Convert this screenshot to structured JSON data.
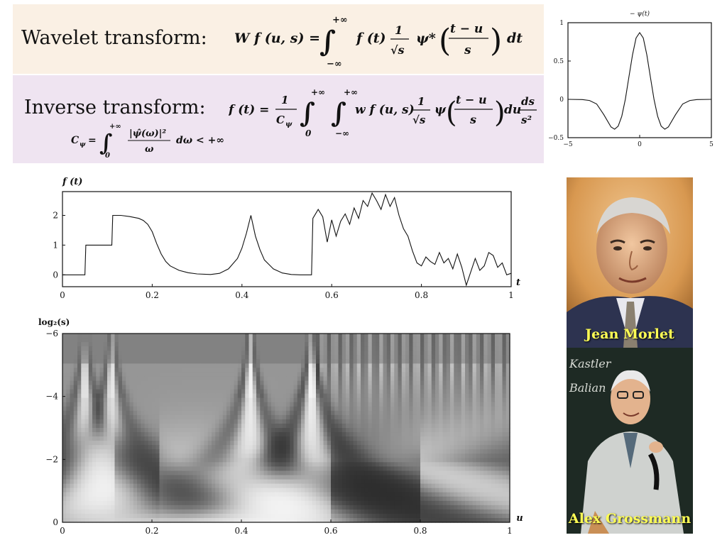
{
  "header": {
    "forward_label": "Wavelet transform:",
    "inverse_label": "Inverse transform:",
    "forward_eq": {
      "lhs": "W f (u, s) =",
      "upper": "+∞",
      "lower": "−∞",
      "f": "f (t)",
      "one": "1",
      "root": "√s",
      "psi": "ψ*",
      "num": "t − u",
      "den": "s",
      "dt": "dt"
    },
    "inverse_eq": {
      "lhs": "f (t) =",
      "one": "1",
      "cpsi": "C",
      "cpsi_sub": "ψ",
      "upper": "+∞",
      "lower0": "0",
      "upper2": "+∞",
      "lower2": "−∞",
      "w": "w f (u, s)",
      "one2": "1",
      "root": "√s",
      "psi": "ψ",
      "num": "t − u",
      "den": "s",
      "du": "du",
      "ds": "ds",
      "s2": "s²"
    },
    "admissibility": {
      "lhs": "C",
      "lhs_sub": "ψ",
      "eq": "=",
      "upper": "+∞",
      "lower": "0",
      "num": "|ψ̂(ω)|²",
      "den": "ω",
      "tail": "dω < +∞"
    }
  },
  "people": {
    "morlet": "Jean Morlet",
    "grossmann": "Alex Grossmann",
    "board_words": [
      "Kastler",
      "Balian"
    ]
  },
  "chart_data": [
    {
      "type": "line",
      "title": "− ψ(t)",
      "xlim": [
        -5,
        5
      ],
      "ylim": [
        -0.5,
        1
      ],
      "xticks": [
        "−5",
        "0",
        "5"
      ],
      "yticks": [
        "1",
        "0.5",
        "0",
        "−0.5"
      ],
      "x": [
        -5,
        -4,
        -3.5,
        -3,
        -2.5,
        -2,
        -1.75,
        -1.5,
        -1.25,
        -1,
        -0.75,
        -0.5,
        -0.25,
        0,
        0.25,
        0.5,
        0.75,
        1,
        1.25,
        1.5,
        1.75,
        2,
        2.5,
        3,
        3.5,
        4,
        5
      ],
      "values": [
        0,
        -0.003,
        -0.015,
        -0.06,
        -0.2,
        -0.36,
        -0.39,
        -0.35,
        -0.22,
        0,
        0.29,
        0.58,
        0.8,
        0.87,
        0.8,
        0.58,
        0.29,
        0,
        -0.22,
        -0.35,
        -0.39,
        -0.36,
        -0.2,
        -0.06,
        -0.015,
        -0.003,
        0
      ]
    },
    {
      "type": "line",
      "ylabel": "f (t)",
      "xlabel": "t",
      "xlim": [
        0,
        1
      ],
      "ylim": [
        -0.4,
        2.8
      ],
      "xticks": [
        "0",
        "0.2",
        "0.4",
        "0.6",
        "0.8",
        "1"
      ],
      "yticks": [
        "0",
        "1",
        "2"
      ],
      "x": [
        0,
        0.05,
        0.052,
        0.11,
        0.112,
        0.13,
        0.15,
        0.17,
        0.18,
        0.19,
        0.2,
        0.21,
        0.22,
        0.23,
        0.24,
        0.26,
        0.28,
        0.3,
        0.33,
        0.35,
        0.37,
        0.39,
        0.4,
        0.41,
        0.42,
        0.43,
        0.44,
        0.45,
        0.47,
        0.49,
        0.51,
        0.53,
        0.555,
        0.558,
        0.57,
        0.58,
        0.59,
        0.6,
        0.61,
        0.62,
        0.63,
        0.64,
        0.65,
        0.66,
        0.67,
        0.68,
        0.69,
        0.7,
        0.71,
        0.72,
        0.73,
        0.74,
        0.75,
        0.76,
        0.77,
        0.78,
        0.79,
        0.8,
        0.81,
        0.82,
        0.83,
        0.84,
        0.85,
        0.86,
        0.87,
        0.88,
        0.89,
        0.9,
        0.91,
        0.92,
        0.93,
        0.94,
        0.95,
        0.96,
        0.97,
        0.98,
        0.99,
        1
      ],
      "values": [
        0,
        0,
        1,
        1,
        2,
        2,
        1.96,
        1.9,
        1.83,
        1.7,
        1.45,
        1.05,
        0.7,
        0.45,
        0.3,
        0.15,
        0.07,
        0.03,
        0.01,
        0.05,
        0.2,
        0.55,
        0.9,
        1.4,
        2,
        1.3,
        0.85,
        0.5,
        0.2,
        0.06,
        0.01,
        0,
        0,
        1.9,
        2.2,
        1.95,
        1.1,
        1.85,
        1.3,
        1.8,
        2.05,
        1.7,
        2.25,
        1.9,
        2.5,
        2.3,
        2.75,
        2.5,
        2.2,
        2.7,
        2.3,
        2.6,
        2.0,
        1.55,
        1.3,
        0.8,
        0.4,
        0.3,
        0.6,
        0.45,
        0.35,
        0.75,
        0.4,
        0.55,
        0.2,
        0.7,
        0.25,
        -0.35,
        0.1,
        0.55,
        0.15,
        0.3,
        0.75,
        0.65,
        0.25,
        0.4,
        0,
        0.05
      ]
    },
    {
      "type": "heatmap",
      "ylabel": "log₂(s)",
      "xlabel": "u",
      "xlim": [
        0,
        1
      ],
      "ylim": [
        0,
        -6
      ],
      "xticks": [
        "0",
        "0.2",
        "0.4",
        "0.6",
        "0.8",
        "1"
      ],
      "yticks": [
        "0",
        "−2",
        "−4",
        "−6"
      ],
      "colormap": "gray",
      "note_colors": {
        "positive": "#ffffff",
        "negative": "#000000",
        "zero": "#8a8a8a"
      }
    }
  ]
}
